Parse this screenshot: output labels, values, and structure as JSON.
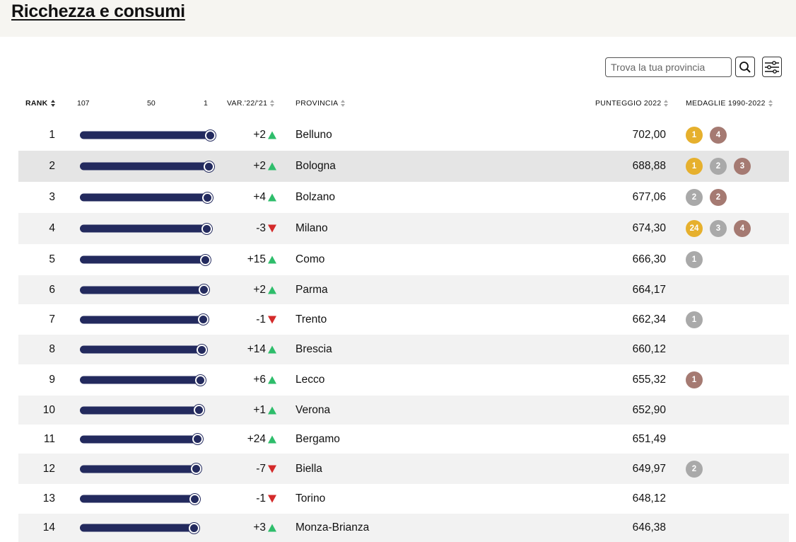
{
  "page": {
    "title": "Ricchezza e consumi"
  },
  "search": {
    "placeholder": "Trova la tua provincia"
  },
  "icons": {
    "search": "search-icon",
    "filter": "sliders-icon",
    "trend_up": "triangle-up-icon",
    "trend_down": "triangle-down-icon"
  },
  "colors": {
    "bar": "#232a5e",
    "up": "#2ebd6b",
    "down": "#d42a2a",
    "gold": "#e6b02d",
    "silver": "#a9a9a9",
    "bronze": "#a57a72"
  },
  "table": {
    "headers": {
      "rank": "RANK",
      "var": "VAR.'22/'21",
      "provincia": "PROVINCIA",
      "punteggio": "PUNTEGGIO 2022",
      "medaglie": "MEDAGLIE 1990-2022"
    },
    "scale": {
      "left": "107",
      "mid": "50",
      "right": "1"
    },
    "rows": [
      {
        "rank": "1",
        "var": "+2",
        "dir": "up",
        "provincia": "Belluno",
        "punteggio": "702,00",
        "medals": [
          {
            "type": "gold",
            "count": "1"
          },
          {
            "type": "bronze",
            "count": "4"
          }
        ]
      },
      {
        "rank": "2",
        "var": "+2",
        "dir": "up",
        "provincia": "Bologna",
        "punteggio": "688,88",
        "medals": [
          {
            "type": "gold",
            "count": "1"
          },
          {
            "type": "silver",
            "count": "2"
          },
          {
            "type": "bronze",
            "count": "3"
          }
        ]
      },
      {
        "rank": "3",
        "var": "+4",
        "dir": "up",
        "provincia": "Bolzano",
        "punteggio": "677,06",
        "medals": [
          {
            "type": "silver",
            "count": "2"
          },
          {
            "type": "bronze",
            "count": "2"
          }
        ]
      },
      {
        "rank": "4",
        "var": "-3",
        "dir": "down",
        "provincia": "Milano",
        "punteggio": "674,30",
        "medals": [
          {
            "type": "gold",
            "count": "24"
          },
          {
            "type": "silver",
            "count": "3"
          },
          {
            "type": "bronze",
            "count": "4"
          }
        ]
      },
      {
        "rank": "5",
        "var": "+15",
        "dir": "up",
        "provincia": "Como",
        "punteggio": "666,30",
        "medals": [
          {
            "type": "silver",
            "count": "1"
          }
        ]
      },
      {
        "rank": "6",
        "var": "+2",
        "dir": "up",
        "provincia": "Parma",
        "punteggio": "664,17",
        "medals": []
      },
      {
        "rank": "7",
        "var": "-1",
        "dir": "down",
        "provincia": "Trento",
        "punteggio": "662,34",
        "medals": [
          {
            "type": "silver",
            "count": "1"
          }
        ]
      },
      {
        "rank": "8",
        "var": "+14",
        "dir": "up",
        "provincia": "Brescia",
        "punteggio": "660,12",
        "medals": []
      },
      {
        "rank": "9",
        "var": "+6",
        "dir": "up",
        "provincia": "Lecco",
        "punteggio": "655,32",
        "medals": [
          {
            "type": "bronze",
            "count": "1"
          }
        ]
      },
      {
        "rank": "10",
        "var": "+1",
        "dir": "up",
        "provincia": "Verona",
        "punteggio": "652,90",
        "medals": []
      },
      {
        "rank": "11",
        "var": "+24",
        "dir": "up",
        "provincia": "Bergamo",
        "punteggio": "651,49",
        "medals": []
      },
      {
        "rank": "12",
        "var": "-7",
        "dir": "down",
        "provincia": "Biella",
        "punteggio": "649,97",
        "medals": [
          {
            "type": "silver",
            "count": "2"
          }
        ]
      },
      {
        "rank": "13",
        "var": "-1",
        "dir": "down",
        "provincia": "Torino",
        "punteggio": "648,12",
        "medals": []
      },
      {
        "rank": "14",
        "var": "+3",
        "dir": "up",
        "provincia": "Monza-Brianza",
        "punteggio": "646,38",
        "medals": []
      }
    ]
  }
}
